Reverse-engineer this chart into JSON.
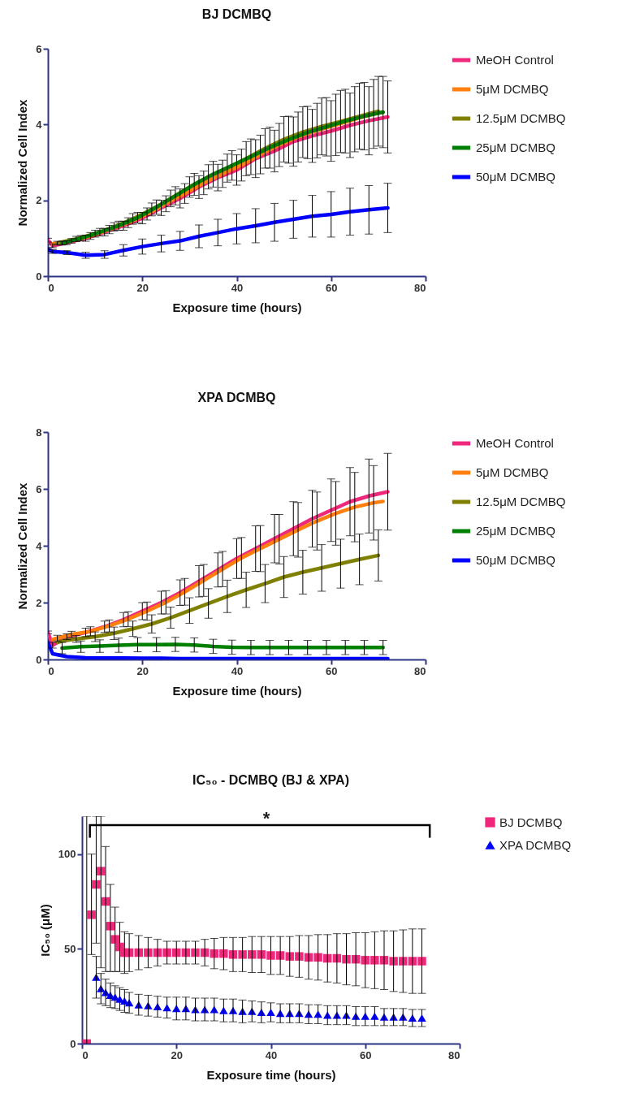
{
  "chart_data": [
    {
      "type": "line",
      "title": "BJ DCMBQ",
      "xlabel": "Exposure time (hours)",
      "ylabel": "Normalized Cell Index",
      "xlim": [
        0,
        80
      ],
      "xticks": [
        0,
        20,
        40,
        60,
        80
      ],
      "ylim": [
        0,
        6
      ],
      "yticks": [
        0,
        2,
        4,
        6
      ],
      "legend": "right",
      "line_style": "solid",
      "x": [
        0,
        1,
        4,
        8,
        12,
        16,
        20,
        24,
        28,
        32,
        36,
        40,
        44,
        48,
        52,
        56,
        60,
        64,
        68,
        72
      ],
      "series": [
        {
          "name": "MeOH Control",
          "color": "#f0287c",
          "values": [
            0.95,
            0.8,
            0.88,
            1.0,
            1.16,
            1.33,
            1.53,
            1.8,
            2.05,
            2.35,
            2.6,
            2.8,
            3.1,
            3.3,
            3.55,
            3.7,
            3.83,
            3.98,
            4.1,
            4.2
          ],
          "errors": [
            0.05,
            0.05,
            0.05,
            0.08,
            0.1,
            0.12,
            0.15,
            0.2,
            0.25,
            0.3,
            0.35,
            0.4,
            0.5,
            0.55,
            0.65,
            0.7,
            0.8,
            0.85,
            0.9,
            0.95
          ]
        },
        {
          "name": "5μM DCMBQ",
          "color": "#ff7f0e",
          "x": [
            1,
            2,
            5,
            9,
            13,
            17,
            21,
            25,
            29,
            33,
            37,
            41,
            45,
            49,
            53,
            57,
            61,
            65,
            69,
            71
          ],
          "values": [
            0.85,
            0.87,
            0.93,
            1.06,
            1.23,
            1.41,
            1.64,
            1.91,
            2.18,
            2.46,
            2.7,
            2.93,
            3.21,
            3.46,
            3.67,
            3.84,
            3.99,
            4.14,
            4.28,
            4.32
          ],
          "errors": [
            null,
            0.05,
            0.06,
            0.09,
            0.11,
            0.13,
            0.16,
            0.21,
            0.26,
            0.31,
            0.36,
            0.42,
            0.51,
            0.57,
            0.66,
            0.72,
            0.81,
            0.86,
            0.91,
            null
          ]
        },
        {
          "name": "12.5μM DCMBQ",
          "color": "#808000",
          "x": [
            2,
            3,
            6,
            10,
            14,
            18,
            22,
            26,
            30,
            34,
            38,
            42,
            46,
            50,
            54,
            58,
            62,
            66,
            70
          ],
          "values": [
            0.87,
            0.9,
            0.98,
            1.12,
            1.3,
            1.51,
            1.76,
            2.05,
            2.35,
            2.62,
            2.85,
            3.1,
            3.37,
            3.61,
            3.8,
            3.95,
            4.08,
            4.22,
            4.35
          ],
          "errors": [
            null,
            null,
            0.07,
            0.09,
            0.11,
            0.14,
            0.17,
            0.22,
            0.27,
            0.32,
            0.37,
            0.45,
            0.52,
            0.6,
            0.67,
            0.75,
            0.82,
            0.87,
            0.92
          ]
        },
        {
          "name": "25μM DCMBQ",
          "color": "#008000",
          "x": [
            3,
            7,
            11,
            15,
            19,
            23,
            27,
            31,
            35,
            39,
            43,
            47,
            51,
            55,
            59,
            63,
            67,
            71
          ],
          "values": [
            0.87,
            1.0,
            1.16,
            1.33,
            1.54,
            1.82,
            2.12,
            2.42,
            2.69,
            2.92,
            3.15,
            3.39,
            3.6,
            3.79,
            3.94,
            4.09,
            4.22,
            4.33
          ],
          "errors": [
            0.05,
            0.07,
            0.1,
            0.12,
            0.14,
            0.19,
            0.24,
            0.29,
            0.34,
            0.39,
            0.47,
            0.54,
            0.62,
            0.69,
            0.77,
            0.84,
            0.89,
            0.94
          ]
        },
        {
          "name": "50μM DCMBQ",
          "color": "#0000ff",
          "values": [
            0.7,
            0.65,
            0.62,
            0.55,
            0.57,
            0.68,
            0.78,
            0.86,
            0.93,
            1.05,
            1.15,
            1.25,
            1.33,
            1.42,
            1.5,
            1.58,
            1.63,
            1.7,
            1.75,
            1.8
          ],
          "errors": [
            0.05,
            0.05,
            0.05,
            0.08,
            0.1,
            0.15,
            0.2,
            0.22,
            0.25,
            0.3,
            0.35,
            0.4,
            0.45,
            0.5,
            0.5,
            0.55,
            0.6,
            0.62,
            0.64,
            0.65
          ]
        }
      ]
    },
    {
      "type": "line",
      "title": "XPA DCMBQ",
      "xlabel": "Exposure time (hours)",
      "ylabel": "Normalized Cell Index",
      "xlim": [
        0,
        80
      ],
      "xticks": [
        0,
        20,
        40,
        60,
        80
      ],
      "ylim": [
        0,
        8
      ],
      "yticks": [
        0,
        2,
        4,
        6,
        8
      ],
      "legend": "right",
      "line_style": "solid",
      "x": [
        0,
        1,
        4,
        8,
        12,
        16,
        20,
        24,
        28,
        32,
        36,
        40,
        44,
        48,
        52,
        56,
        60,
        64,
        68,
        72
      ],
      "series": [
        {
          "name": "MeOH Control",
          "color": "#f0287c",
          "values": [
            0.95,
            0.5,
            0.8,
            0.95,
            1.15,
            1.4,
            1.7,
            2.0,
            2.35,
            2.75,
            3.15,
            3.55,
            3.9,
            4.25,
            4.6,
            4.95,
            5.25,
            5.55,
            5.75,
            5.9
          ],
          "errors": [
            0.05,
            0.1,
            0.1,
            0.15,
            0.2,
            0.25,
            0.3,
            0.4,
            0.45,
            0.55,
            0.6,
            0.7,
            0.8,
            0.85,
            0.95,
            1.0,
            1.1,
            1.2,
            1.3,
            1.35
          ]
        },
        {
          "name": "5μM DCMBQ",
          "color": "#ff7f0e",
          "x": [
            1,
            2,
            5,
            9,
            13,
            17,
            21,
            25,
            29,
            33,
            37,
            41,
            45,
            49,
            53,
            57,
            61,
            65,
            69,
            71
          ],
          "values": [
            0.7,
            0.75,
            0.88,
            0.99,
            1.18,
            1.42,
            1.7,
            2.01,
            2.38,
            2.78,
            3.18,
            3.57,
            3.9,
            4.23,
            4.56,
            4.87,
            5.14,
            5.36,
            5.51,
            5.56
          ],
          "errors": [
            null,
            0.1,
            0.11,
            0.16,
            0.21,
            0.26,
            0.32,
            0.41,
            0.47,
            0.56,
            0.62,
            0.72,
            0.81,
            0.87,
            0.96,
            1.02,
            1.12,
            1.22,
            1.31,
            null
          ]
        },
        {
          "name": "12.5μM DCMBQ",
          "color": "#808000",
          "x": [
            2,
            3,
            6,
            10,
            14,
            18,
            22,
            26,
            30,
            34,
            38,
            42,
            46,
            50,
            54,
            58,
            62,
            66,
            70
          ],
          "values": [
            0.6,
            0.65,
            0.72,
            0.8,
            0.92,
            1.08,
            1.25,
            1.47,
            1.72,
            1.97,
            2.22,
            2.45,
            2.67,
            2.9,
            3.07,
            3.22,
            3.37,
            3.52,
            3.66
          ],
          "errors": [
            null,
            null,
            0.12,
            0.17,
            0.22,
            0.27,
            0.32,
            0.37,
            0.45,
            0.52,
            0.57,
            0.62,
            0.67,
            0.72,
            0.77,
            0.82,
            0.86,
            0.89,
            0.9
          ]
        },
        {
          "name": "25μM DCMBQ",
          "color": "#008000",
          "x": [
            3,
            7,
            11,
            15,
            19,
            23,
            27,
            31,
            35,
            39,
            43,
            47,
            51,
            55,
            59,
            63,
            67,
            71
          ],
          "values": [
            0.4,
            0.45,
            0.47,
            0.5,
            0.52,
            0.52,
            0.53,
            0.51,
            0.46,
            0.43,
            0.42,
            0.42,
            0.42,
            0.42,
            0.42,
            0.42,
            0.42,
            0.42
          ],
          "errors": [
            0.2,
            0.2,
            0.22,
            0.25,
            0.25,
            0.25,
            0.25,
            0.25,
            0.25,
            0.25,
            0.25,
            0.25,
            0.25,
            0.25,
            0.25,
            0.25,
            0.25,
            0.25
          ]
        },
        {
          "name": "50μM DCMBQ",
          "color": "#0000ff",
          "values": [
            0.6,
            0.2,
            0.1,
            0.06,
            0.05,
            0.05,
            0.04,
            0.04,
            0.03,
            0.03,
            0.03,
            0.03,
            0.03,
            0.03,
            0.03,
            0.03,
            0.03,
            0.03,
            0.03,
            0.03
          ]
        }
      ]
    },
    {
      "type": "scatter",
      "title": "IC₅₀ - DCMBQ (BJ & XPA)",
      "xlabel": "Exposure time (hours)",
      "ylabel": "IC₅₀ (μM)",
      "xlim": [
        0,
        80
      ],
      "xticks": [
        0,
        20,
        40,
        60,
        80
      ],
      "ylim": [
        0,
        120
      ],
      "yticks": [
        0,
        50,
        100
      ],
      "legend": "right",
      "annotations": [
        "*"
      ],
      "series": [
        {
          "name": "BJ DCMBQ",
          "color": "#f0287c",
          "marker": "square",
          "x": [
            1,
            2,
            3,
            4,
            5,
            6,
            7,
            8,
            9,
            10,
            12,
            14,
            16,
            18,
            20,
            22,
            24,
            26,
            28,
            30,
            32,
            34,
            36,
            38,
            40,
            42,
            44,
            46,
            48,
            50,
            52,
            54,
            56,
            58,
            60,
            62,
            64,
            66,
            68,
            70,
            72
          ],
          "values": [
            0,
            68,
            84,
            91,
            75,
            62,
            55,
            51,
            48,
            48,
            48,
            48,
            48,
            48,
            48,
            48,
            48,
            48,
            47.5,
            47.5,
            47,
            47,
            47,
            47,
            46.5,
            46.5,
            46,
            46,
            45.5,
            45.5,
            45,
            45,
            44.5,
            44.5,
            44,
            44,
            44,
            43.5,
            43.5,
            43.5,
            43.5
          ],
          "errors": [
            [
              0,
              120
            ],
            [
              47,
              100
            ],
            [
              53,
              120
            ],
            [
              40,
              120
            ],
            [
              38,
              104
            ],
            [
              38,
              84
            ],
            [
              38,
              72
            ],
            [
              38,
              64
            ],
            11,
            10,
            9,
            8,
            7,
            6,
            6,
            6,
            6,
            7,
            8,
            8.5,
            9,
            9,
            9.5,
            9.5,
            10,
            10,
            10.5,
            11,
            11.5,
            12,
            12.5,
            13,
            13.5,
            14,
            14.5,
            15,
            15.5,
            16,
            16.5,
            17,
            17
          ]
        },
        {
          "name": "XPA DCMBQ",
          "color": "#0000ff",
          "marker": "triangle",
          "x": [
            3,
            4,
            5,
            6,
            7,
            8,
            9,
            10,
            12,
            14,
            16,
            18,
            20,
            22,
            24,
            26,
            28,
            30,
            32,
            34,
            36,
            38,
            40,
            42,
            44,
            46,
            48,
            50,
            52,
            54,
            56,
            58,
            60,
            62,
            64,
            66,
            68,
            70,
            72
          ],
          "values": [
            35,
            29,
            27,
            25.5,
            24.5,
            23.5,
            22.5,
            21.5,
            20.5,
            20,
            19.5,
            19,
            18.5,
            18.5,
            18,
            18,
            18,
            17.5,
            17.5,
            17,
            17,
            16.5,
            16.5,
            16,
            16,
            16,
            15.5,
            15.5,
            15,
            15,
            15,
            14.5,
            14.5,
            14.5,
            14,
            14,
            14,
            13.5,
            13.5
          ],
          "errors": [
            11,
            8,
            7,
            6.5,
            6,
            6,
            6,
            5.5,
            5.5,
            5.5,
            5.5,
            5.5,
            6,
            6,
            6,
            6,
            6,
            6,
            6,
            6,
            5.5,
            5.5,
            5,
            5,
            5,
            5,
            5,
            5,
            5,
            5,
            5,
            5,
            5,
            5,
            4.5,
            4.5,
            4.5,
            4.5,
            4.5
          ]
        }
      ]
    }
  ]
}
